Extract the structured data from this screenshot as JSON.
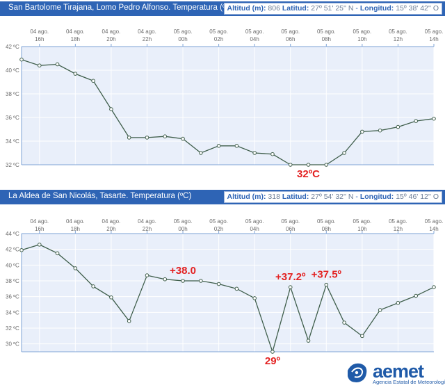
{
  "panels": [
    {
      "header": {
        "title": "San Bartolome Tirajana, Lomo Pedro Alfonso. Temperatura (ºC)",
        "altitud_label": "Altitud (m):",
        "altitud_value": "806",
        "latitud_label": "Latitud:",
        "latitud_value": "27º 51' 25'' N",
        "longitud_label": "Longitud:",
        "longitud_value": "15º 38' 42'' O"
      },
      "annotations": [
        {
          "text": "32ºC",
          "x_index": 16,
          "y": 32,
          "position": "below"
        }
      ]
    },
    {
      "header": {
        "title": "La Aldea de San Nicolás, Tasarte. Temperatura (ºC)",
        "altitud_label": "Altitud (m):",
        "altitud_value": "318",
        "latitud_label": "Latitud:",
        "latitud_value": "27º 54' 32'' N",
        "longitud_label": "Longitud:",
        "longitud_value": "15º 46' 12'' O"
      },
      "annotations": [
        {
          "text": "+38.0",
          "x_index": 9,
          "y": 38.0,
          "position": "above"
        },
        {
          "text": "+37.2º",
          "x_index": 15,
          "y": 37.2,
          "position": "above"
        },
        {
          "text": "+37.5º",
          "x_index": 17,
          "y": 37.5,
          "position": "above"
        },
        {
          "text": "29º",
          "x_index": 14,
          "y": 29,
          "position": "below"
        }
      ]
    }
  ],
  "chart_data": [
    {
      "type": "line",
      "title": "San Bartolome Tirajana, Lomo Pedro Alfonso. Temperatura (ºC)",
      "x_tick_labels": [
        [
          "04 ago.",
          "16h"
        ],
        [
          "04 ago.",
          "18h"
        ],
        [
          "04 ago.",
          "20h"
        ],
        [
          "04 ago.",
          "22h"
        ],
        [
          "05 ago.",
          "00h"
        ],
        [
          "05 ago.",
          "02h"
        ],
        [
          "05 ago.",
          "04h"
        ],
        [
          "05 ago.",
          "06h"
        ],
        [
          "05 ago.",
          "08h"
        ],
        [
          "05 ago.",
          "10h"
        ],
        [
          "05 ago.",
          "12h"
        ],
        [
          "05 ago.",
          "14h"
        ]
      ],
      "y_ticks": [
        "32 ºC",
        "34 ºC",
        "36 ºC",
        "38 ºC",
        "40 ºC",
        "42 ºC"
      ],
      "ylim": [
        32,
        42
      ],
      "grid": true,
      "legend": "none",
      "colors": {
        "line": "#3f5e4b",
        "plot_bg": "#e9effa",
        "grid": "#ffffff",
        "axis": "#7ea3d6"
      },
      "series": [
        {
          "values": [
            40.9,
            40.4,
            40.5,
            39.7,
            39.1,
            36.7,
            34.3,
            34.3,
            34.4,
            34.2,
            33.0,
            33.6,
            33.6,
            33.0,
            32.9,
            32.0,
            32.0,
            32.0,
            33.0,
            34.8,
            34.9,
            35.2,
            35.7,
            35.9
          ]
        }
      ]
    },
    {
      "type": "line",
      "title": "La Aldea de San Nicolás, Tasarte. Temperatura (ºC)",
      "x_tick_labels": [
        [
          "04 ago.",
          "16h"
        ],
        [
          "04 ago.",
          "18h"
        ],
        [
          "04 ago.",
          "20h"
        ],
        [
          "04 ago.",
          "22h"
        ],
        [
          "05 ago.",
          "00h"
        ],
        [
          "05 ago.",
          "02h"
        ],
        [
          "05 ago.",
          "04h"
        ],
        [
          "05 ago.",
          "06h"
        ],
        [
          "05 ago.",
          "08h"
        ],
        [
          "05 ago.",
          "10h"
        ],
        [
          "05 ago.",
          "12h"
        ],
        [
          "05 ago.",
          "14h"
        ]
      ],
      "y_ticks": [
        "30 ºC",
        "32 ºC",
        "34 ºC",
        "36 ºC",
        "38 ºC",
        "40 ºC",
        "42 ºC",
        "44 ºC"
      ],
      "ylim": [
        29,
        44
      ],
      "grid": true,
      "legend": "none",
      "colors": {
        "line": "#3f5e4b",
        "plot_bg": "#e9effa",
        "grid": "#ffffff",
        "axis": "#7ea3d6"
      },
      "series": [
        {
          "values": [
            41.9,
            42.6,
            41.5,
            39.6,
            37.3,
            35.9,
            32.9,
            38.7,
            38.2,
            38.0,
            38.0,
            37.6,
            37.0,
            35.8,
            29.0,
            37.2,
            30.4,
            37.5,
            32.7,
            31.0,
            34.3,
            35.2,
            36.1,
            37.2
          ]
        }
      ]
    }
  ],
  "annotation_color": "#e32222",
  "logo": {
    "word": "aemet",
    "subtitle": "Agencia Estatal de Meteorología",
    "color": "#1f5aa8"
  }
}
